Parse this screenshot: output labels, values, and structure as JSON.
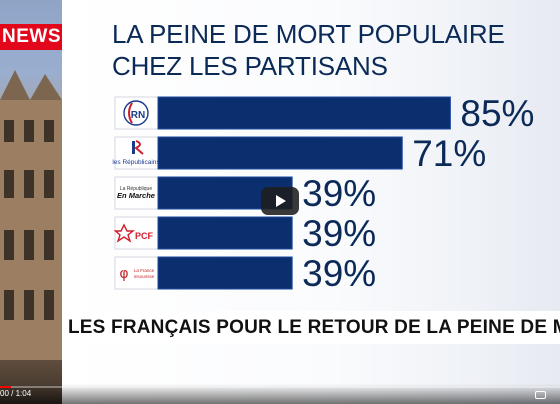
{
  "channel_logo": "NEWS",
  "title_lines": [
    "LA PEINE DE MORT POPULAIRE",
    "CHEZ LES PARTISANS"
  ],
  "banner": "LES FRANÇAIS POUR LE RETOUR DE LA PEINE DE MO",
  "player": {
    "time": "00 / 1:04",
    "progress": 0.02
  },
  "colors": {
    "bar": "#0a2e6e",
    "bar_edge": "#1d4aa0",
    "title": "#0c2a57",
    "logo_red": "#e2071b"
  },
  "chart_data": {
    "type": "bar",
    "orientation": "horizontal",
    "categories": [
      "RN",
      "LR Les Républicains",
      "La République En Marche",
      "PCF",
      "La France Insoumise"
    ],
    "values": [
      85,
      71,
      39,
      39,
      39
    ],
    "value_labels": [
      "85%",
      "71%",
      "39%",
      "39%",
      "39%"
    ],
    "xlim": [
      0,
      100
    ],
    "title": "LA PEINE DE MORT POPULAIRE CHEZ LES PARTISANS",
    "xlabel": "",
    "ylabel": "",
    "grid": false,
    "legend": "none",
    "logos": [
      {
        "name": "rn-logo",
        "text": "RN"
      },
      {
        "name": "lr-logo",
        "text": "les Républicains"
      },
      {
        "name": "lrem-logo",
        "text": "La République En Marche"
      },
      {
        "name": "pcf-logo",
        "text": "PCF"
      },
      {
        "name": "lfi-logo",
        "text": "La France insoumise"
      }
    ]
  }
}
